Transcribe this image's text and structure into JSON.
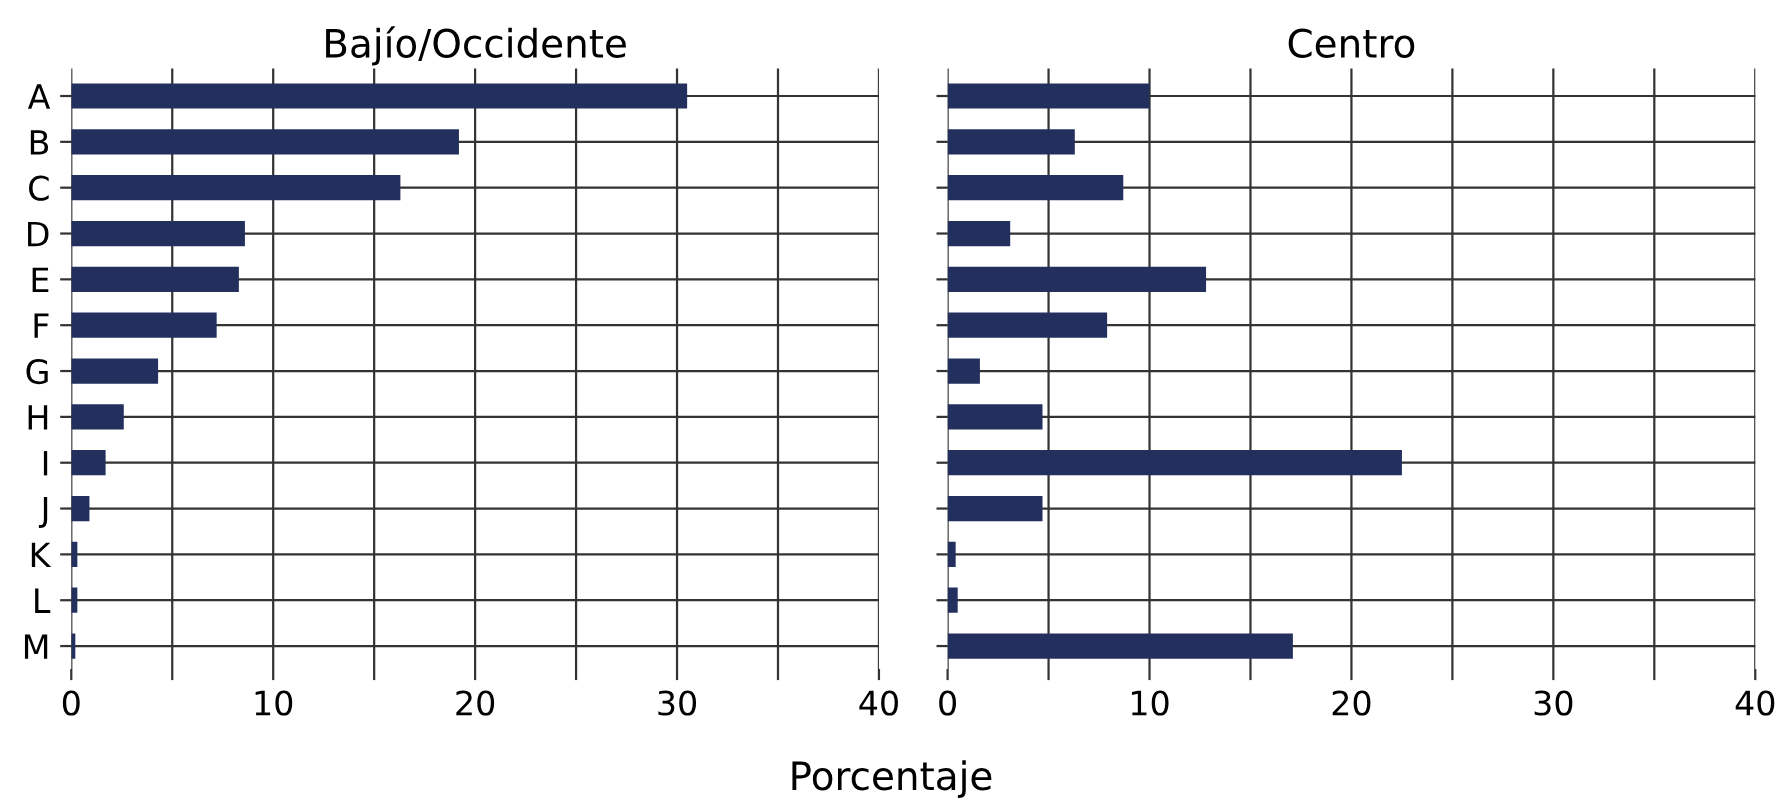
{
  "chart_data": [
    {
      "type": "bar",
      "orientation": "horizontal",
      "title": "Bajío/Occidente",
      "xlabel": "Porcentaje",
      "categories": [
        "A",
        "B",
        "C",
        "D",
        "E",
        "F",
        "G",
        "H",
        "I",
        "J",
        "K",
        "L",
        "M"
      ],
      "series": [
        {
          "color": "#23305e",
          "values": [
            30.5,
            19.2,
            16.3,
            8.6,
            8.3,
            7.2,
            4.3,
            2.6,
            1.7,
            0.9,
            0.3,
            0.3,
            0.2
          ]
        }
      ],
      "xlim": [
        0,
        40
      ],
      "xticks": [
        0,
        {
          "value": 5,
          "label": null
        },
        10,
        {
          "value": 15,
          "label": null
        },
        20,
        {
          "value": 25,
          "label": null
        },
        30,
        {
          "value": 35,
          "label": null
        },
        40
      ],
      "grid": true
    },
    {
      "type": "bar",
      "orientation": "horizontal",
      "title": "Centro",
      "categories": [
        null,
        null,
        null,
        null,
        null,
        null,
        null,
        null,
        null,
        null,
        null,
        null,
        null
      ],
      "series": [
        {
          "color": "#23305e",
          "values": [
            10.0,
            6.3,
            8.7,
            3.1,
            12.8,
            7.9,
            1.6,
            4.7,
            22.5,
            4.7,
            0.4,
            0.5,
            17.1
          ]
        }
      ],
      "xlim": [
        0,
        40
      ],
      "xticks": [
        0,
        {
          "value": 5,
          "label": null
        },
        10,
        {
          "value": 15,
          "label": null
        },
        20,
        {
          "value": 25,
          "label": null
        },
        30,
        {
          "value": 35,
          "label": null
        },
        40
      ],
      "grid": true,
      "tick_labels": "x"
    }
  ]
}
